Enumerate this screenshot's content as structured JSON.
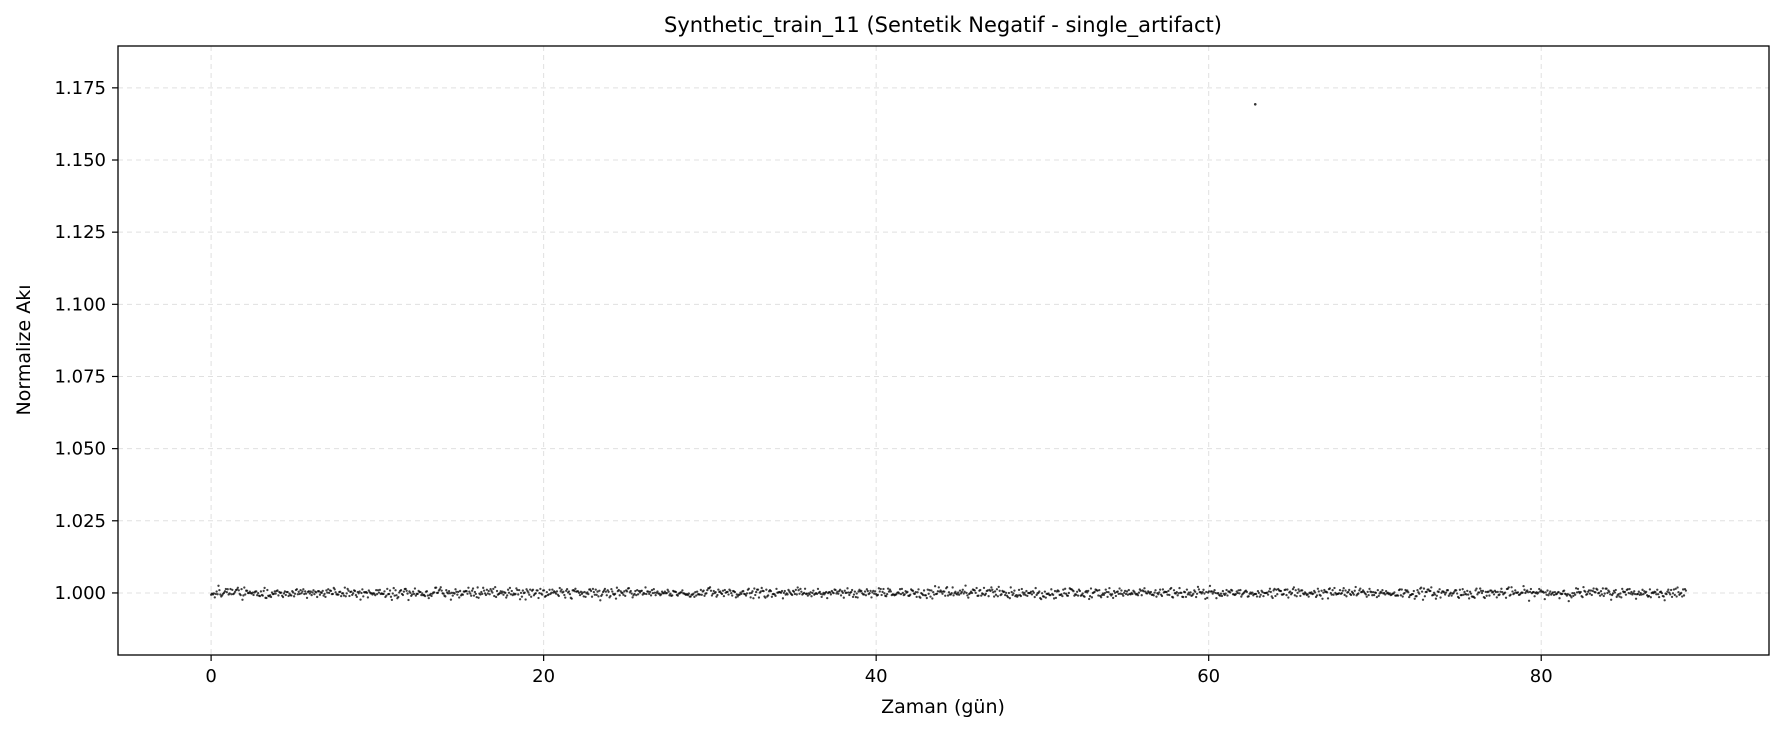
{
  "chart_data": {
    "type": "scatter",
    "title": "Synthetic_train_11 (Sentetik Negatif - single_artifact)",
    "xlabel": "Zaman (gün)",
    "ylabel": "Normalize Akı",
    "xlim": [
      -5.6,
      93.7
    ],
    "ylim": [
      0.9785,
      1.1895
    ],
    "xticks": [
      0,
      20,
      40,
      60,
      80
    ],
    "yticks": [
      1.0,
      1.025,
      1.05,
      1.075,
      1.1,
      1.125,
      1.15,
      1.175
    ],
    "grid": true,
    "marker_color": "#000000",
    "series": [
      {
        "x_start": 0.0,
        "x_end": 88.7,
        "point_count": 1600,
        "baseline": 1.0,
        "noise_std": 0.0009
      }
    ],
    "outliers": [
      {
        "x": 62.8,
        "y": 1.1693
      }
    ]
  }
}
